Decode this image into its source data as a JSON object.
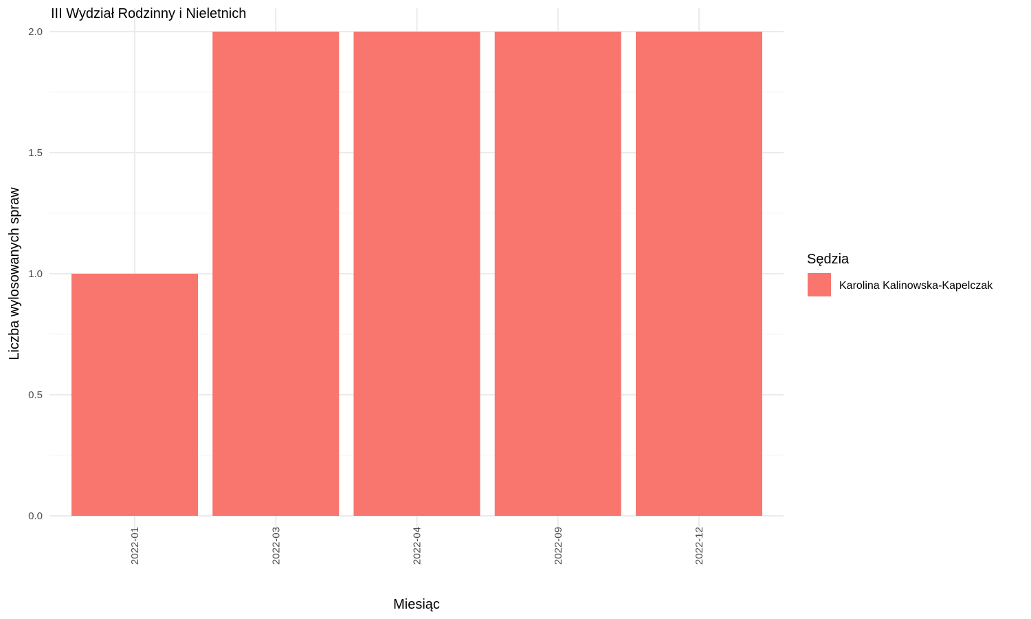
{
  "chart_data": {
    "type": "bar",
    "title": "III Wydział Rodzinny i Nieletnich",
    "xlabel": "Miesiąc",
    "ylabel": "Liczba wylosowanych spraw",
    "categories": [
      "2022-01",
      "2022-03",
      "2022-04",
      "2022-09",
      "2022-12"
    ],
    "series": [
      {
        "name": "Karolina Kalinowska-Kapelczak",
        "values": [
          1,
          2,
          2,
          2,
          2
        ],
        "color": "#f8766d"
      }
    ],
    "ylim": [
      0,
      2
    ],
    "yticks": [
      "0.0",
      "0.5",
      "1.0",
      "1.5",
      "2.0"
    ],
    "grid": true,
    "legend": {
      "title": "Sędzia",
      "position": "right"
    }
  }
}
